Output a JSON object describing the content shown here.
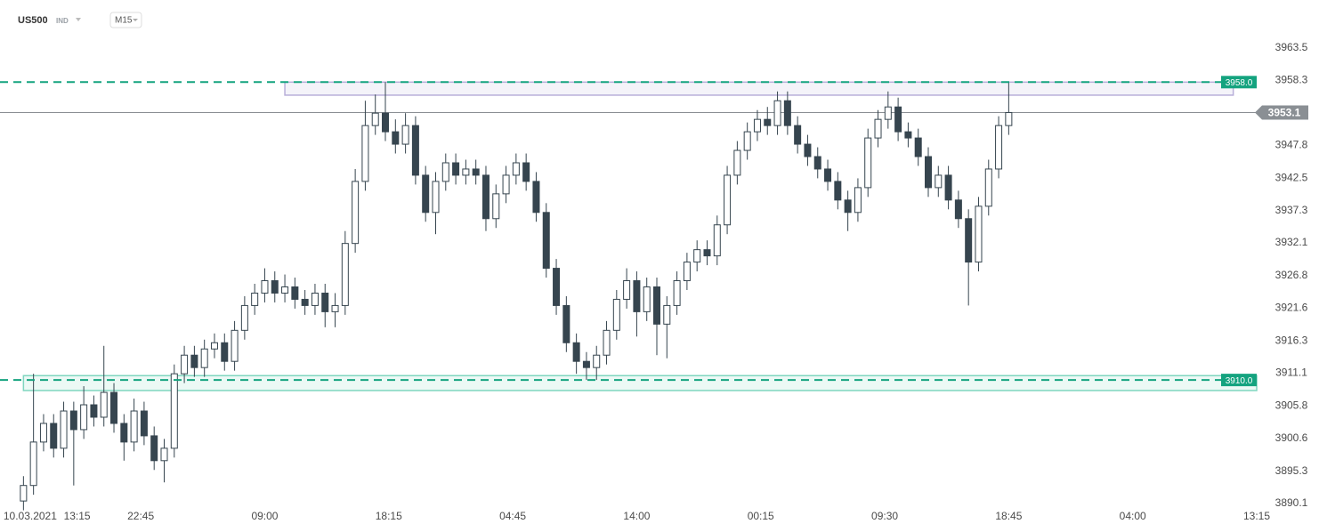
{
  "header": {
    "symbol": "US500",
    "type": "IND",
    "timeframe": "M15"
  },
  "chart_data": {
    "type": "candlestick",
    "up_color": "#ffffff",
    "down_color": "#36454f",
    "edge_color": "#36454f",
    "xlim": [
      -7,
      368
    ],
    "ylim": [
      3888.8,
      3969.8
    ],
    "xticks": [
      {
        "value": 2,
        "label": "10.03.2021"
      },
      {
        "value": 16,
        "label": "13:15"
      },
      {
        "value": 35,
        "label": "22:45"
      },
      {
        "value": 72,
        "label": "09:00"
      },
      {
        "value": 109,
        "label": "18:15"
      },
      {
        "value": 146,
        "label": "04:45"
      },
      {
        "value": 183,
        "label": "14:00"
      },
      {
        "value": 220,
        "label": "00:15"
      },
      {
        "value": 257,
        "label": "09:30"
      },
      {
        "value": 294,
        "label": "18:45"
      },
      {
        "value": 331,
        "label": "04:00"
      },
      {
        "value": 368,
        "label": "13:15"
      }
    ],
    "yticks": [
      3963.5,
      3958.3,
      3947.8,
      3942.5,
      3937.3,
      3932.1,
      3926.8,
      3921.6,
      3916.3,
      3911.1,
      3905.8,
      3900.6,
      3895.3,
      3890.1
    ],
    "current_price": 3953.1,
    "current_color": "#8a8f94",
    "levels": [
      {
        "value": 3958.0,
        "label": "3958.0"
      },
      {
        "value": 3910.0,
        "label": "3910.0"
      }
    ],
    "level_color": "#14a37f",
    "zones": [
      {
        "x": [
          78,
          361
        ],
        "y": [
          3955.9,
          3958.0
        ],
        "color": "#b8afd9"
      },
      {
        "x": [
          0,
          368
        ],
        "y": [
          3908.3,
          3910.7
        ],
        "color": "#7fd6bf"
      }
    ],
    "x": [
      0,
      3,
      6,
      9,
      12,
      15,
      18,
      21,
      24,
      27,
      30,
      33,
      36,
      39,
      42,
      45,
      48,
      51,
      54,
      57,
      60,
      63,
      66,
      69,
      72,
      75,
      78,
      81,
      84,
      87,
      90,
      93,
      96,
      99,
      102,
      105,
      108,
      111,
      114,
      117,
      120,
      123,
      126,
      129,
      132,
      135,
      138,
      141,
      144,
      147,
      150,
      153,
      156,
      159,
      162,
      165,
      168,
      171,
      174,
      177,
      180,
      183,
      186,
      189,
      192,
      195,
      198,
      201,
      204,
      207,
      210,
      213,
      216,
      219,
      222,
      225,
      228,
      231,
      234,
      237,
      240,
      243,
      246,
      249,
      252,
      255,
      258,
      261,
      264,
      267,
      270,
      273,
      276,
      279,
      282,
      285,
      288,
      291,
      294
    ],
    "open": [
      3890.5,
      3893,
      3900,
      3903,
      3899,
      3905,
      3902,
      3906,
      3904,
      3908,
      3903,
      3900,
      3905,
      3901,
      3897,
      3899,
      3911,
      3914,
      3912,
      3915,
      3916,
      3913,
      3918,
      3922,
      3924,
      3926,
      3924,
      3925,
      3923,
      3922,
      3924,
      3921,
      3922,
      3932,
      3942,
      3951,
      3953,
      3950,
      3948,
      3951,
      3943,
      3937,
      3942,
      3945,
      3943,
      3944,
      3943,
      3936,
      3940,
      3943,
      3945,
      3942,
      3937,
      3928,
      3922,
      3916,
      3913,
      3912,
      3914,
      3918,
      3923,
      3926,
      3921,
      3925,
      3919,
      3922,
      3926,
      3929,
      3931,
      3930,
      3935,
      3943,
      3947,
      3950,
      3952,
      3951,
      3955,
      3951,
      3948,
      3946,
      3944,
      3942,
      3939,
      3937,
      3941,
      3949,
      3952,
      3954,
      3950,
      3949,
      3946,
      3941,
      3943,
      3939,
      3936,
      3929,
      3938,
      3944,
      3951
    ],
    "high": [
      3894.5,
      3911,
      3904.5,
      3904.5,
      3906.5,
      3906.5,
      3909,
      3907.5,
      3915.5,
      3909.5,
      3904.5,
      3907,
      3906.5,
      3902.5,
      3900.5,
      3912.5,
      3915.5,
      3915.5,
      3916.5,
      3917.5,
      3917.5,
      3919.5,
      3923.5,
      3925.5,
      3928,
      3927.5,
      3927,
      3926.5,
      3924.5,
      3925.5,
      3925.5,
      3924,
      3934,
      3944,
      3955,
      3956,
      3958,
      3952,
      3953,
      3952.5,
      3944.5,
      3943.5,
      3946.5,
      3946.5,
      3945.5,
      3945.5,
      3944.5,
      3941.5,
      3944.5,
      3946.5,
      3946.5,
      3943.5,
      3938.5,
      3929.5,
      3923.5,
      3917.5,
      3914.5,
      3915.5,
      3919.5,
      3924.5,
      3928,
      3927.5,
      3926.5,
      3926.5,
      3923.5,
      3927.5,
      3930.5,
      3932.5,
      3932.5,
      3936.5,
      3944.5,
      3948.5,
      3951.5,
      3953.5,
      3954,
      3956.5,
      3956.5,
      3952.5,
      3949.5,
      3947.5,
      3945.5,
      3943.5,
      3940.5,
      3942.5,
      3950.5,
      3953.5,
      3956.5,
      3955.5,
      3951.5,
      3950.5,
      3947.5,
      3944.5,
      3944.5,
      3940.5,
      3937.5,
      3939.5,
      3945.5,
      3952.5,
      3958
    ],
    "low": [
      3889,
      3891.5,
      3898.5,
      3897.5,
      3897.5,
      3893,
      3900.5,
      3902.5,
      3902.5,
      3901.5,
      3897,
      3898.5,
      3899.5,
      3895.5,
      3893.5,
      3897.5,
      3909.5,
      3910.5,
      3910.5,
      3913.5,
      3911.5,
      3911.5,
      3916.5,
      3920.5,
      3922.5,
      3922.5,
      3922.5,
      3921.5,
      3920.5,
      3920.5,
      3918.5,
      3918.5,
      3920.5,
      3930.5,
      3940.5,
      3949.5,
      3948.5,
      3946.5,
      3946.5,
      3941.5,
      3935.5,
      3933.5,
      3940.5,
      3941.5,
      3941.5,
      3941.5,
      3934,
      3934.5,
      3938.5,
      3941.5,
      3940.5,
      3935.5,
      3926.5,
      3920.5,
      3914.5,
      3911,
      3910,
      3910,
      3912.5,
      3916.5,
      3921.5,
      3917,
      3919.5,
      3914,
      3913.5,
      3920.5,
      3924.5,
      3927.5,
      3928.5,
      3928.5,
      3933.5,
      3941.5,
      3945.5,
      3948.5,
      3949.5,
      3949.5,
      3949.5,
      3946.5,
      3944.5,
      3942.5,
      3940.5,
      3937.5,
      3934,
      3935.5,
      3939.5,
      3947.5,
      3950.5,
      3948.5,
      3947.5,
      3944.5,
      3939.5,
      3939.5,
      3937.5,
      3934.5,
      3922,
      3927.5,
      3936.5,
      3942.5,
      3949.5
    ],
    "close": [
      3893,
      3900,
      3903,
      3899,
      3905,
      3902,
      3906,
      3904,
      3908,
      3903,
      3900,
      3905,
      3901,
      3897,
      3899,
      3911,
      3914,
      3912,
      3915,
      3916,
      3913,
      3918,
      3922,
      3924,
      3926,
      3924,
      3925,
      3923,
      3922,
      3924,
      3921,
      3922,
      3932,
      3942,
      3951,
      3953,
      3950,
      3948,
      3951,
      3943,
      3937,
      3942,
      3945,
      3943,
      3944,
      3943,
      3936,
      3940,
      3943,
      3945,
      3942,
      3937,
      3928,
      3922,
      3916,
      3913,
      3912,
      3914,
      3918,
      3923,
      3926,
      3921,
      3925,
      3919,
      3922,
      3926,
      3929,
      3931,
      3930,
      3935,
      3943,
      3947,
      3950,
      3952,
      3951,
      3955,
      3951,
      3948,
      3946,
      3944,
      3942,
      3939,
      3937,
      3941,
      3949,
      3952,
      3954,
      3950,
      3949,
      3946,
      3941,
      3943,
      3939,
      3936,
      3929,
      3938,
      3944,
      3951,
      3953.1
    ]
  }
}
